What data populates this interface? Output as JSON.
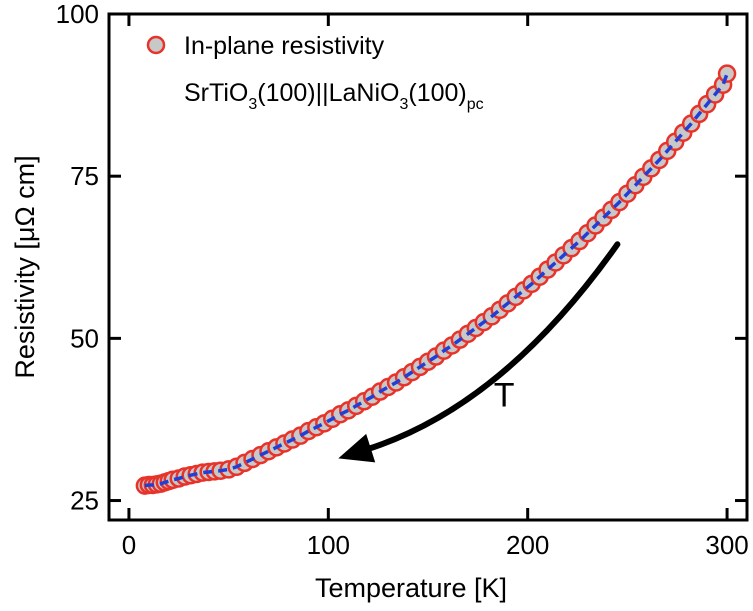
{
  "chart_data": {
    "type": "scatter",
    "xlabel": "Temperature [K]",
    "ylabel": "Resistivity [μΩ cm]",
    "xlim": [
      -10,
      310
    ],
    "ylim": [
      22,
      100
    ],
    "xticks": [
      0,
      100,
      200,
      300
    ],
    "yticks": [
      25,
      50,
      75,
      100
    ],
    "x_tick_labels": [
      "0",
      "100",
      "200",
      "300"
    ],
    "y_tick_labels": [
      "25",
      "50",
      "75",
      "100"
    ],
    "legend": {
      "placement": "top-left",
      "line1": "In-plane resistivity",
      "line2_parts": [
        "SrTiO",
        "3",
        "(100)||LaNiO",
        "3",
        "(100)",
        "pc"
      ]
    },
    "annotation": {
      "label": "T",
      "arrow_from": [
        245,
        64.5
      ],
      "arrow_to": [
        105,
        31.5
      ]
    },
    "series": [
      {
        "name": "In-plane resistivity",
        "marker": "circle",
        "marker_fill": "#c8c8c8",
        "marker_edge": "#e8332a",
        "fit_line_color": "#1f3fd6",
        "points": [
          [
            8,
            27.3
          ],
          [
            10,
            27.4
          ],
          [
            12,
            27.4
          ],
          [
            14,
            27.5
          ],
          [
            16,
            27.6
          ],
          [
            18,
            27.8
          ],
          [
            20,
            28.0
          ],
          [
            22,
            28.2
          ],
          [
            25,
            28.4
          ],
          [
            28,
            28.7
          ],
          [
            31,
            28.9
          ],
          [
            34,
            29.1
          ],
          [
            37,
            29.3
          ],
          [
            40,
            29.4
          ],
          [
            43,
            29.5
          ],
          [
            46,
            29.6
          ],
          [
            50,
            29.8
          ],
          [
            54,
            30.2
          ],
          [
            58,
            30.8
          ],
          [
            62,
            31.4
          ],
          [
            66,
            32.0
          ],
          [
            70,
            32.6
          ],
          [
            74,
            33.2
          ],
          [
            78,
            33.8
          ],
          [
            82,
            34.4
          ],
          [
            86,
            35.0
          ],
          [
            90,
            35.7
          ],
          [
            94,
            36.3
          ],
          [
            98,
            36.9
          ],
          [
            102,
            37.6
          ],
          [
            106,
            38.3
          ],
          [
            110,
            38.9
          ],
          [
            114,
            39.6
          ],
          [
            118,
            40.3
          ],
          [
            122,
            41.0
          ],
          [
            126,
            41.8
          ],
          [
            130,
            42.5
          ],
          [
            134,
            43.2
          ],
          [
            138,
            44.0
          ],
          [
            142,
            44.8
          ],
          [
            146,
            45.6
          ],
          [
            150,
            46.4
          ],
          [
            154,
            47.2
          ],
          [
            158,
            48.1
          ],
          [
            162,
            48.9
          ],
          [
            166,
            49.8
          ],
          [
            170,
            50.7
          ],
          [
            174,
            51.6
          ],
          [
            178,
            52.5
          ],
          [
            182,
            53.4
          ],
          [
            186,
            54.4
          ],
          [
            190,
            55.4
          ],
          [
            194,
            56.4
          ],
          [
            198,
            57.4
          ],
          [
            202,
            58.4
          ],
          [
            206,
            59.5
          ],
          [
            210,
            60.6
          ],
          [
            214,
            61.7
          ],
          [
            218,
            62.8
          ],
          [
            222,
            63.9
          ],
          [
            226,
            65.0
          ],
          [
            230,
            66.2
          ],
          [
            234,
            67.4
          ],
          [
            238,
            68.6
          ],
          [
            242,
            69.8
          ],
          [
            246,
            71.0
          ],
          [
            250,
            72.3
          ],
          [
            254,
            73.6
          ],
          [
            258,
            74.9
          ],
          [
            262,
            76.2
          ],
          [
            266,
            77.5
          ],
          [
            270,
            78.9
          ],
          [
            274,
            80.3
          ],
          [
            278,
            81.7
          ],
          [
            282,
            83.1
          ],
          [
            286,
            84.6
          ],
          [
            290,
            86.1
          ],
          [
            294,
            87.6
          ],
          [
            298,
            89.1
          ],
          [
            300,
            90.8
          ]
        ]
      }
    ]
  }
}
